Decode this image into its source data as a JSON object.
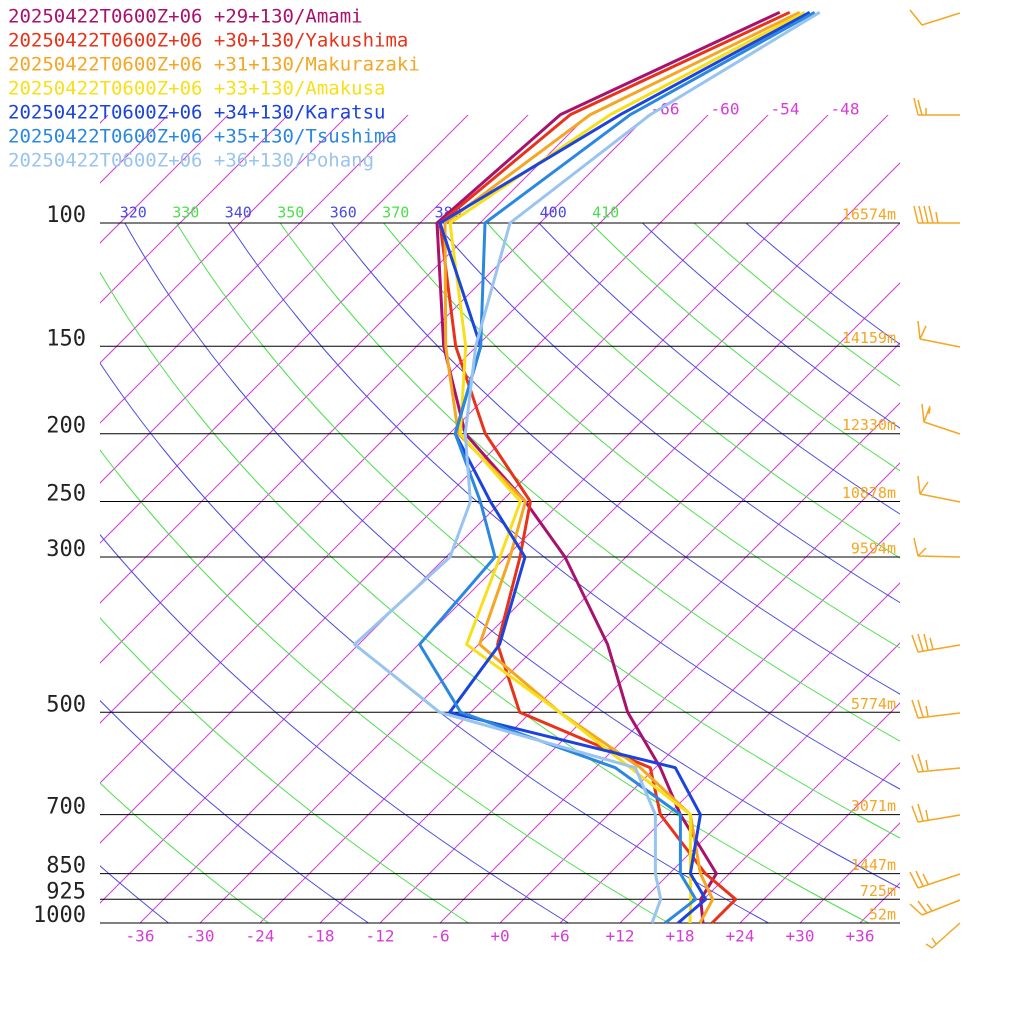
{
  "chart_data": {
    "type": "skewt",
    "xlim": [
      -40,
      40
    ],
    "ylim": [
      1000,
      100
    ],
    "log_y": true,
    "skew": true,
    "xticks": [
      -36,
      -30,
      -24,
      -18,
      -12,
      -6,
      {
        "value": 0,
        "label": "+0"
      },
      {
        "value": 6,
        "label": "+6"
      },
      {
        "value": 12,
        "label": "+12"
      },
      {
        "value": 18,
        "label": "+18"
      },
      {
        "value": 24,
        "label": "+24"
      },
      {
        "value": 30,
        "label": "+30"
      },
      {
        "value": 36,
        "label": "+36"
      }
    ],
    "yticks": [
      100,
      150,
      200,
      250,
      300,
      500,
      700,
      850,
      925,
      1000
    ],
    "height_labels": [
      "16574m",
      "14159m",
      "12330m",
      "10878m",
      "9594m",
      "5774m",
      "3071m",
      "1447m",
      "725m",
      "52m"
    ],
    "isotherm_color": "#d63cd6",
    "isotherms": [
      -144,
      -138,
      -132,
      -126,
      -120,
      -114,
      -108,
      -102,
      -96,
      -90,
      -84,
      -78,
      -72,
      -66,
      -60,
      -54,
      -48,
      -42,
      -36,
      -30,
      -24,
      -18,
      -12,
      -6,
      0,
      6,
      12,
      18,
      24,
      30,
      36
    ],
    "top_isotherm_labels": [
      -66,
      -60,
      -54,
      -48
    ],
    "adiabat_colors": [
      "#4a4ae0",
      "#4ae04a"
    ],
    "adiabats": [
      230,
      240,
      250,
      260,
      270,
      280,
      290,
      300,
      310,
      320,
      330,
      340,
      350,
      360,
      370,
      380,
      390,
      400,
      410,
      420,
      430,
      440
    ],
    "adiabat_labels": [
      320,
      330,
      340,
      350,
      360,
      370,
      380,
      400,
      410
    ],
    "pressure": [
      1000,
      925,
      850,
      700,
      600,
      500,
      400,
      300,
      250,
      200,
      150,
      100,
      70,
      50
    ],
    "series": [
      {
        "name": "20250422T0600Z+06 +29+130/Amami",
        "color": "#a8126e",
        "values": [
          20.3,
          17.7,
          16.7,
          7.2,
          0.5,
          -8.3,
          -17.1,
          -30.1,
          -39.6,
          -52.4,
          -63.3,
          -76.3,
          -74.8,
          -63.1
        ]
      },
      {
        "name": "20250422T0600Z+06 +30+130/Yakushima",
        "color": "#e8331a",
        "values": [
          21.2,
          21.2,
          15.6,
          5.2,
          -0.5,
          -19.1,
          -28.1,
          -34.6,
          -39.1,
          -50.4,
          -62.1,
          -76,
          -73.8,
          -62.1
        ]
      },
      {
        "name": "20250422T0600Z+06 +31+130/Makurazaki",
        "color": "#f5a623",
        "values": [
          20,
          18.9,
          15.1,
          8.2,
          -1.5,
          -15.1,
          -29.9,
          -35.6,
          -39.6,
          -53.1,
          -63.1,
          -75.5,
          -71.8,
          -61.1
        ]
      },
      {
        "name": "20250422T0600Z+06 +33+130/Amakusa",
        "color": "#f7e01a",
        "values": [
          19,
          16.7,
          14.1,
          8.2,
          -2.5,
          -15.1,
          -31.2,
          -36.6,
          -40.1,
          -52.9,
          -61.1,
          -75,
          -69.8,
          -60.6
        ]
      },
      {
        "name": "20250422T0600Z+06 +34+130/Karatsu",
        "color": "#1a44dd",
        "values": [
          17.8,
          18.2,
          14.1,
          9.2,
          2,
          -26.1,
          -27.9,
          -34.1,
          -43.1,
          -53.4,
          -59.6,
          -76,
          -68.8,
          -60.1
        ]
      },
      {
        "name": "20250422T0600Z+06 +35+130/Tsushima",
        "color": "#2a88e0",
        "values": [
          16.5,
          17.2,
          13.1,
          7.2,
          -4,
          -25,
          -35.9,
          -37.1,
          -44.1,
          -53.4,
          -59.6,
          -71.5,
          -67.8,
          -59.6
        ]
      },
      {
        "name": "20250422T0600Z+06 +36+130/Pohang",
        "color": "#99c4f0",
        "values": [
          15.2,
          13.7,
          10.6,
          4.7,
          -2,
          -27.1,
          -42.4,
          -41.6,
          -45.1,
          -52.4,
          -60.1,
          -69,
          -65.8,
          -59.1
        ]
      }
    ]
  }
}
